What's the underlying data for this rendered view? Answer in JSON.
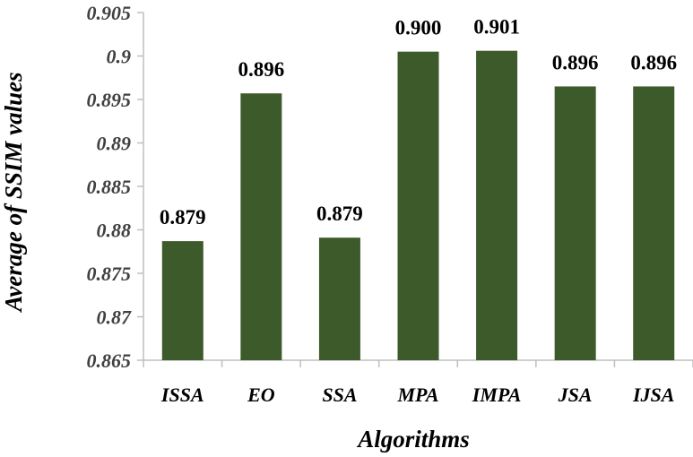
{
  "chart_data": {
    "type": "bar",
    "title": "",
    "xlabel": "Algorithms",
    "ylabel": "Average of SSIM values",
    "categories": [
      "ISSA",
      "EO",
      "SSA",
      "MPA",
      "IMPA",
      "JSA",
      "IJSA"
    ],
    "values": [
      0.8787,
      0.8957,
      0.8791,
      0.9005,
      0.9006,
      0.8965,
      0.8965
    ],
    "data_labels": [
      "0.879",
      "0.896",
      "0.879",
      "0.900",
      "0.901",
      "0.896",
      "0.896"
    ],
    "ylim": [
      0.865,
      0.905
    ],
    "yticks": [
      0.865,
      0.87,
      0.875,
      0.88,
      0.885,
      0.89,
      0.895,
      0.9,
      0.905
    ],
    "ytick_labels": [
      "0.865",
      "0.87",
      "0.875",
      "0.88",
      "0.885",
      "0.89",
      "0.895",
      "0.9",
      "0.905"
    ],
    "bar_color": "#3d5a2a",
    "grid": false,
    "legend": "none"
  }
}
